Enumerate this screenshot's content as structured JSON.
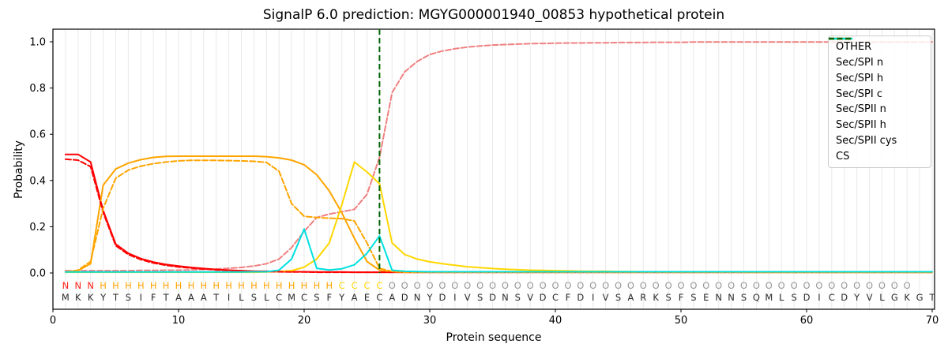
{
  "chart_data": {
    "type": "line",
    "title": "SignalP 6.0 prediction: MGYG000001940_00853 hypothetical protein",
    "xlabel": "Protein sequence",
    "ylabel": "Probability",
    "xticks": [
      0,
      10,
      20,
      30,
      40,
      50,
      60,
      70
    ],
    "yticks": [
      [
        "0.0",
        0.0
      ],
      [
        "0.2",
        0.2
      ],
      [
        "0.4",
        0.4
      ],
      [
        "0.6",
        0.6
      ],
      [
        "0.8",
        0.8
      ],
      [
        "1.0",
        1.0
      ]
    ],
    "xlim": [
      0,
      70.3
    ],
    "ylim": [
      -0.16,
      1.055
    ],
    "grid": "vertical-per-residue",
    "legend_position": "upper right",
    "x_start": 1,
    "n_positions": 70,
    "sequence": "MKKYTSIFTAAATILSLCMCSFYAECADNYDIVSDNSVDCFDIVSARKSFSENNSQMLSDICDYVLGKGT",
    "regions": "NNNHHHHHHHHHHHHHHHHHHHCCCCOOOOOOOOOOOOOOOOOOOOOOOOOOOOOOOOOOOOOOOOOO",
    "region_colors": {
      "N": "#ff2015",
      "H": "#ffa500",
      "C": "#ffd700",
      "O": "#969696"
    },
    "sequence_color": "#2b2b2b",
    "grid_color": "#e9e9e9",
    "frame_color": "#000000",
    "cs_line": {
      "label": "CS",
      "x": 26,
      "color": "#006400",
      "style": "dashed"
    },
    "series": [
      {
        "name": "OTHER",
        "color": "#f08080",
        "style": "dashed",
        "values": [
          0.01,
          0.01,
          0.01,
          0.01,
          0.01,
          0.01,
          0.011,
          0.011,
          0.012,
          0.012,
          0.013,
          0.015,
          0.017,
          0.02,
          0.024,
          0.03,
          0.04,
          0.06,
          0.11,
          0.18,
          0.24,
          0.255,
          0.265,
          0.275,
          0.34,
          0.5,
          0.78,
          0.87,
          0.915,
          0.945,
          0.96,
          0.97,
          0.977,
          0.982,
          0.986,
          0.988,
          0.99,
          0.992,
          0.993,
          0.994,
          0.995,
          0.995,
          0.996,
          0.996,
          0.997,
          0.997,
          0.997,
          0.998,
          0.998,
          0.998,
          0.999,
          0.999,
          0.999,
          0.999,
          0.999,
          0.999,
          0.999,
          0.999,
          0.999,
          0.999,
          0.999,
          0.999,
          0.999,
          0.999,
          0.999,
          0.999,
          0.999,
          0.999,
          0.999,
          0.999
        ]
      },
      {
        "name": "Sec/SPI n",
        "color": "#ff0000",
        "style": "solid",
        "values": [
          0.513,
          0.513,
          0.48,
          0.27,
          0.125,
          0.085,
          0.062,
          0.047,
          0.037,
          0.03,
          0.024,
          0.019,
          0.015,
          0.012,
          0.01,
          0.008,
          0.007,
          0.006,
          0.005,
          0.005,
          0.004,
          0.004,
          0.004,
          0.003,
          0.003,
          0.003,
          0.003,
          0.003,
          0.003,
          0.003,
          0.003,
          0.003,
          0.003,
          0.003,
          0.003,
          0.003,
          0.003,
          0.003,
          0.003,
          0.003,
          0.003,
          0.003,
          0.003,
          0.003,
          0.003,
          0.003,
          0.003,
          0.003,
          0.003,
          0.003,
          0.003,
          0.003,
          0.003,
          0.003,
          0.003,
          0.003,
          0.003,
          0.003,
          0.003,
          0.003,
          0.003,
          0.003,
          0.003,
          0.003,
          0.003,
          0.003,
          0.003,
          0.003,
          0.003,
          0.003
        ]
      },
      {
        "name": "Sec/SPI h",
        "color": "#ffa500",
        "style": "solid",
        "values": [
          0.004,
          0.01,
          0.04,
          0.38,
          0.45,
          0.475,
          0.49,
          0.5,
          0.504,
          0.505,
          0.505,
          0.505,
          0.505,
          0.505,
          0.505,
          0.505,
          0.503,
          0.498,
          0.488,
          0.468,
          0.425,
          0.355,
          0.26,
          0.15,
          0.05,
          0.012,
          0.005,
          0.003,
          0.003,
          0.003,
          0.003,
          0.003,
          0.003,
          0.003,
          0.003,
          0.003,
          0.003,
          0.003,
          0.003,
          0.003,
          0.003,
          0.003,
          0.003,
          0.003,
          0.003,
          0.003,
          0.003,
          0.003,
          0.003,
          0.003,
          0.003,
          0.003,
          0.003,
          0.003,
          0.003,
          0.003,
          0.003,
          0.003,
          0.003,
          0.003,
          0.003,
          0.003,
          0.003,
          0.003,
          0.003,
          0.003,
          0.003,
          0.003,
          0.003,
          0.003
        ]
      },
      {
        "name": "Sec/SPI c",
        "color": "#ffd700",
        "style": "solid",
        "values": [
          0.003,
          0.003,
          0.003,
          0.003,
          0.003,
          0.003,
          0.003,
          0.003,
          0.003,
          0.003,
          0.003,
          0.003,
          0.003,
          0.003,
          0.003,
          0.003,
          0.004,
          0.006,
          0.01,
          0.025,
          0.06,
          0.13,
          0.295,
          0.48,
          0.437,
          0.386,
          0.13,
          0.08,
          0.06,
          0.048,
          0.04,
          0.033,
          0.027,
          0.023,
          0.019,
          0.016,
          0.014,
          0.012,
          0.011,
          0.01,
          0.009,
          0.008,
          0.007,
          0.007,
          0.006,
          0.006,
          0.005,
          0.005,
          0.005,
          0.004,
          0.004,
          0.004,
          0.004,
          0.004,
          0.003,
          0.003,
          0.003,
          0.003,
          0.003,
          0.003,
          0.003,
          0.003,
          0.003,
          0.003,
          0.003,
          0.003,
          0.003,
          0.003,
          0.003,
          0.003
        ]
      },
      {
        "name": "Sec/SPII n",
        "color": "#ff0000",
        "style": "dashed",
        "values": [
          0.492,
          0.488,
          0.46,
          0.262,
          0.118,
          0.08,
          0.058,
          0.043,
          0.033,
          0.026,
          0.021,
          0.017,
          0.013,
          0.011,
          0.009,
          0.007,
          0.006,
          0.005,
          0.004,
          0.004,
          0.003,
          0.003,
          0.003,
          0.003,
          0.003,
          0.003,
          0.003,
          0.003,
          0.003,
          0.003,
          0.003,
          0.003,
          0.003,
          0.003,
          0.003,
          0.003,
          0.003,
          0.003,
          0.003,
          0.003,
          0.003,
          0.003,
          0.003,
          0.003,
          0.003,
          0.003,
          0.003,
          0.003,
          0.003,
          0.003,
          0.003,
          0.003,
          0.003,
          0.003,
          0.003,
          0.003,
          0.003,
          0.003,
          0.003,
          0.003,
          0.003,
          0.003,
          0.003,
          0.003,
          0.003,
          0.003,
          0.003,
          0.003,
          0.003,
          0.003
        ]
      },
      {
        "name": "Sec/SPII h",
        "color": "#ffa500",
        "style": "dashed",
        "values": [
          0.004,
          0.012,
          0.05,
          0.28,
          0.41,
          0.445,
          0.462,
          0.473,
          0.48,
          0.485,
          0.487,
          0.487,
          0.487,
          0.486,
          0.485,
          0.483,
          0.478,
          0.44,
          0.3,
          0.245,
          0.24,
          0.237,
          0.235,
          0.225,
          0.13,
          0.02,
          0.006,
          0.003,
          0.003,
          0.003,
          0.003,
          0.003,
          0.003,
          0.003,
          0.003,
          0.003,
          0.003,
          0.003,
          0.003,
          0.003,
          0.003,
          0.003,
          0.003,
          0.003,
          0.003,
          0.003,
          0.003,
          0.003,
          0.003,
          0.003,
          0.003,
          0.003,
          0.003,
          0.003,
          0.003,
          0.003,
          0.003,
          0.003,
          0.003,
          0.003,
          0.003,
          0.003,
          0.003,
          0.003,
          0.003,
          0.003,
          0.003,
          0.003,
          0.003,
          0.003
        ]
      },
      {
        "name": "Sec/SPII cys",
        "color": "#00e0e0",
        "style": "solid",
        "values": [
          0.004,
          0.004,
          0.004,
          0.004,
          0.004,
          0.004,
          0.004,
          0.004,
          0.004,
          0.004,
          0.004,
          0.004,
          0.004,
          0.004,
          0.004,
          0.005,
          0.005,
          0.012,
          0.06,
          0.19,
          0.02,
          0.013,
          0.018,
          0.035,
          0.085,
          0.16,
          0.012,
          0.007,
          0.006,
          0.005,
          0.005,
          0.005,
          0.005,
          0.005,
          0.005,
          0.005,
          0.005,
          0.005,
          0.005,
          0.005,
          0.005,
          0.005,
          0.005,
          0.005,
          0.005,
          0.005,
          0.005,
          0.005,
          0.005,
          0.005,
          0.005,
          0.005,
          0.005,
          0.005,
          0.005,
          0.005,
          0.005,
          0.005,
          0.005,
          0.005,
          0.005,
          0.005,
          0.005,
          0.005,
          0.005,
          0.005,
          0.005,
          0.005,
          0.005,
          0.005
        ]
      }
    ],
    "legend_entries": [
      {
        "label": "OTHER",
        "color": "#f08080",
        "style": "dashed"
      },
      {
        "label": "Sec/SPI n",
        "color": "#ff0000",
        "style": "solid"
      },
      {
        "label": "Sec/SPI h",
        "color": "#ffa500",
        "style": "solid"
      },
      {
        "label": "Sec/SPI c",
        "color": "#ffd700",
        "style": "solid"
      },
      {
        "label": "Sec/SPII n",
        "color": "#ff0000",
        "style": "dashed"
      },
      {
        "label": "Sec/SPII h",
        "color": "#ffa500",
        "style": "dashed"
      },
      {
        "label": "Sec/SPII cys",
        "color": "#00e0e0",
        "style": "solid"
      },
      {
        "label": "CS",
        "color": "#006400",
        "style": "dashed"
      }
    ]
  }
}
